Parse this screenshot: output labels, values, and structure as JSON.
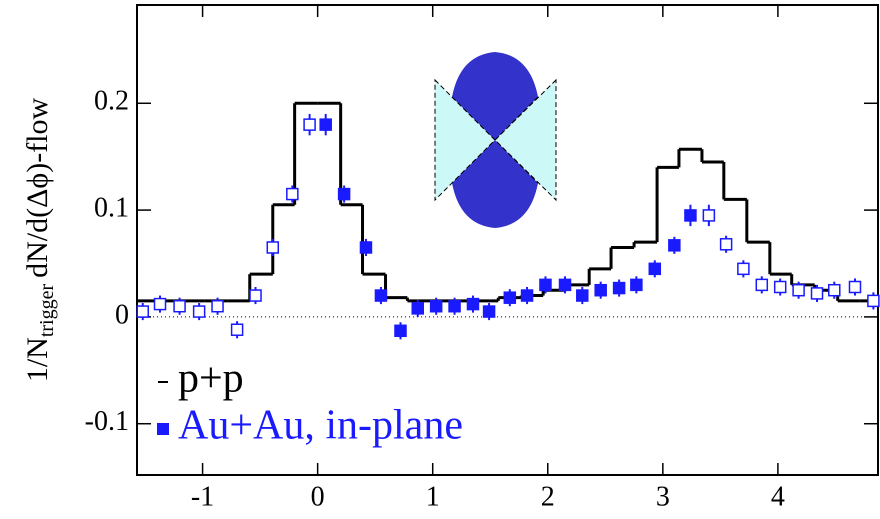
{
  "chart_data": {
    "type": "physics-step-points",
    "y_label_parts": [
      "1/N",
      "trigger",
      "dN/d(Δϕ)-flow"
    ],
    "xlim": [
      -1.57,
      4.87
    ],
    "ylim": [
      -0.148,
      0.292
    ],
    "xticks": [
      -1,
      0,
      1,
      2,
      3,
      4
    ],
    "yticks": [
      -0.1,
      0,
      0.1,
      0.2
    ],
    "zero_line": true,
    "series": [
      {
        "name": "p+p",
        "color": "#000000",
        "style": "step",
        "bins": [
          -1.57,
          -1.37,
          -1.17,
          -0.98,
          -0.78,
          -0.59,
          -0.39,
          -0.2,
          0,
          0.2,
          0.39,
          0.59,
          0.78,
          0.98,
          1.18,
          1.37,
          1.57,
          1.77,
          1.96,
          2.16,
          2.36,
          2.55,
          2.75,
          2.95,
          3.14,
          3.34,
          3.53,
          3.73,
          3.93,
          4.12,
          4.32,
          4.52,
          4.71,
          4.87
        ],
        "values": [
          0.015,
          0.015,
          0.015,
          0.015,
          0.015,
          0.04,
          0.105,
          0.2,
          0.2,
          0.105,
          0.04,
          0.018,
          0.015,
          0.015,
          0.015,
          0.015,
          0.018,
          0.02,
          0.025,
          0.03,
          0.045,
          0.065,
          0.07,
          0.14,
          0.157,
          0.145,
          0.11,
          0.07,
          0.04,
          0.03,
          0.025,
          0.015,
          0.015
        ]
      },
      {
        "name": "Au+Au, in-plane",
        "color": "#1a1aff",
        "style": "filled",
        "x": [
          0.07,
          0.23,
          0.42,
          0.55,
          0.72,
          0.87,
          1.03,
          1.19,
          1.35,
          1.49,
          1.67,
          1.82,
          1.98,
          2.15,
          2.3,
          2.46,
          2.62,
          2.77,
          2.93,
          3.1,
          3.24
        ],
        "values": [
          0.18,
          0.115,
          0.065,
          0.02,
          -0.013,
          0.008,
          0.01,
          0.01,
          0.012,
          0.005,
          0.018,
          0.02,
          0.03,
          0.03,
          0.02,
          0.025,
          0.027,
          0.03,
          0.045,
          0.067,
          0.095
        ],
        "errors": [
          0.01,
          0.008,
          0.008,
          0.008,
          0.008,
          0.008,
          0.008,
          0.008,
          0.008,
          0.008,
          0.008,
          0.008,
          0.008,
          0.008,
          0.008,
          0.008,
          0.008,
          0.008,
          0.008,
          0.008,
          0.01
        ]
      },
      {
        "color": "#1a1aff",
        "style": "open",
        "x": [
          -1.52,
          -1.37,
          -1.2,
          -1.03,
          -0.87,
          -0.7,
          -0.54,
          -0.39,
          -0.22,
          -0.07,
          3.4,
          3.55,
          3.7,
          3.86,
          4.02,
          4.18,
          4.34,
          4.49,
          4.67,
          4.83
        ],
        "values": [
          0.005,
          0.012,
          0.01,
          0.005,
          0.01,
          -0.012,
          0.02,
          0.065,
          0.115,
          0.18,
          0.095,
          0.068,
          0.045,
          0.03,
          0.028,
          0.025,
          0.022,
          0.025,
          0.028,
          0.015
        ],
        "errors": [
          0.008,
          0.008,
          0.008,
          0.008,
          0.008,
          0.008,
          0.008,
          0.008,
          0.008,
          0.01,
          0.01,
          0.008,
          0.008,
          0.008,
          0.008,
          0.008,
          0.008,
          0.008,
          0.008,
          0.008
        ]
      }
    ]
  }
}
